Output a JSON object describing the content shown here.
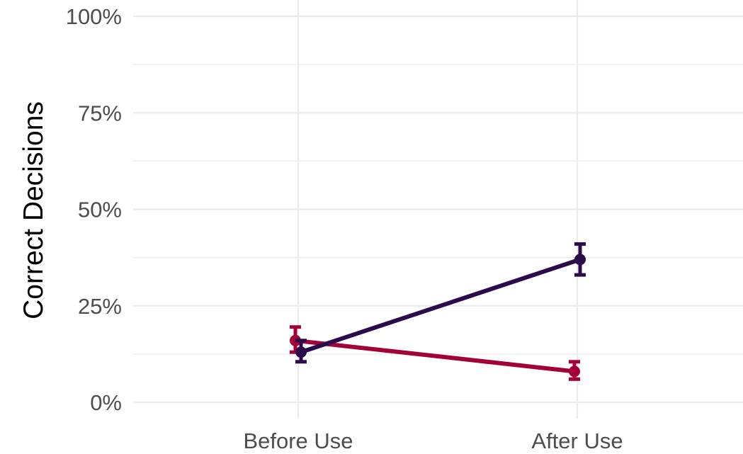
{
  "chart_data": {
    "type": "line",
    "title": "",
    "xlabel": "",
    "ylabel": "Correct Decisions",
    "categories": [
      "Before Use",
      "After Use"
    ],
    "ylim": [
      0,
      100
    ],
    "y_ticks": [
      0,
      25,
      50,
      75,
      100
    ],
    "y_tick_labels": [
      "0%",
      "25%",
      "50%",
      "75%",
      "100%"
    ],
    "grid": true,
    "legend": "none",
    "series": [
      {
        "color": "#a3003a",
        "values": [
          16,
          8
        ],
        "error_low": [
          13,
          6
        ],
        "error_high": [
          19.5,
          10.5
        ]
      },
      {
        "color": "#2d0a4a",
        "values": [
          13,
          37
        ],
        "error_low": [
          10.5,
          33
        ],
        "error_high": [
          16,
          41
        ]
      }
    ]
  }
}
